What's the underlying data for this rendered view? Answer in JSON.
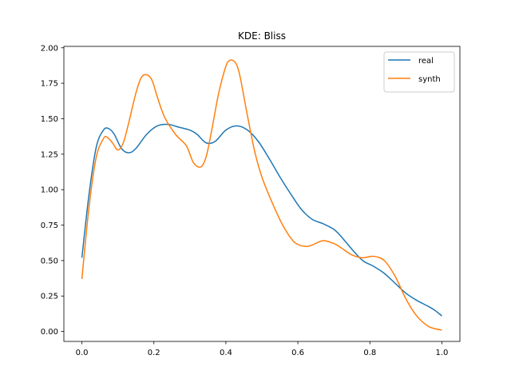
{
  "chart_data": {
    "type": "line",
    "title": "KDE: Bliss",
    "xlabel": "",
    "ylabel": "",
    "xlim": [
      -0.05,
      1.05
    ],
    "ylim": [
      -0.07,
      2.01
    ],
    "xticks": [
      0.0,
      0.2,
      0.4,
      0.6,
      0.8,
      1.0
    ],
    "xtick_labels": [
      "0.0",
      "0.2",
      "0.4",
      "0.6",
      "0.8",
      "1.0"
    ],
    "yticks": [
      0.0,
      0.25,
      0.5,
      0.75,
      1.0,
      1.25,
      1.5,
      1.75,
      2.0
    ],
    "ytick_labels": [
      "0.00",
      "0.25",
      "0.50",
      "0.75",
      "1.00",
      "1.25",
      "1.50",
      "1.75",
      "2.00"
    ],
    "grid": false,
    "legend_position": "top-right",
    "series": [
      {
        "name": "real",
        "color": "#1f77b4",
        "x": [
          0.0,
          0.02,
          0.04,
          0.06,
          0.075,
          0.09,
          0.11,
          0.13,
          0.15,
          0.18,
          0.21,
          0.24,
          0.27,
          0.3,
          0.32,
          0.345,
          0.37,
          0.4,
          0.43,
          0.46,
          0.49,
          0.52,
          0.55,
          0.58,
          0.61,
          0.64,
          0.67,
          0.7,
          0.72,
          0.75,
          0.78,
          0.81,
          0.84,
          0.87,
          0.9,
          0.93,
          0.96,
          0.98,
          1.0
        ],
        "y": [
          0.52,
          0.97,
          1.3,
          1.42,
          1.43,
          1.39,
          1.29,
          1.26,
          1.29,
          1.39,
          1.45,
          1.46,
          1.44,
          1.42,
          1.39,
          1.33,
          1.34,
          1.42,
          1.45,
          1.42,
          1.34,
          1.22,
          1.09,
          0.97,
          0.86,
          0.79,
          0.76,
          0.72,
          0.67,
          0.58,
          0.5,
          0.46,
          0.41,
          0.34,
          0.27,
          0.22,
          0.18,
          0.15,
          0.11
        ]
      },
      {
        "name": "synth",
        "color": "#ff7f0e",
        "x": [
          0.0,
          0.02,
          0.04,
          0.06,
          0.07,
          0.085,
          0.1,
          0.115,
          0.13,
          0.15,
          0.165,
          0.18,
          0.195,
          0.21,
          0.23,
          0.26,
          0.29,
          0.31,
          0.33,
          0.345,
          0.36,
          0.38,
          0.4,
          0.41,
          0.42,
          0.43,
          0.44,
          0.46,
          0.48,
          0.5,
          0.53,
          0.56,
          0.59,
          0.62,
          0.64,
          0.67,
          0.7,
          0.72,
          0.75,
          0.78,
          0.81,
          0.84,
          0.87,
          0.9,
          0.93,
          0.96,
          0.98,
          1.0
        ],
        "y": [
          0.37,
          0.88,
          1.23,
          1.36,
          1.37,
          1.33,
          1.28,
          1.33,
          1.47,
          1.68,
          1.79,
          1.81,
          1.77,
          1.65,
          1.51,
          1.39,
          1.31,
          1.19,
          1.16,
          1.23,
          1.41,
          1.68,
          1.87,
          1.91,
          1.91,
          1.88,
          1.79,
          1.52,
          1.27,
          1.09,
          0.9,
          0.74,
          0.63,
          0.6,
          0.61,
          0.64,
          0.62,
          0.59,
          0.54,
          0.52,
          0.53,
          0.5,
          0.39,
          0.23,
          0.11,
          0.04,
          0.02,
          0.01
        ]
      }
    ]
  }
}
